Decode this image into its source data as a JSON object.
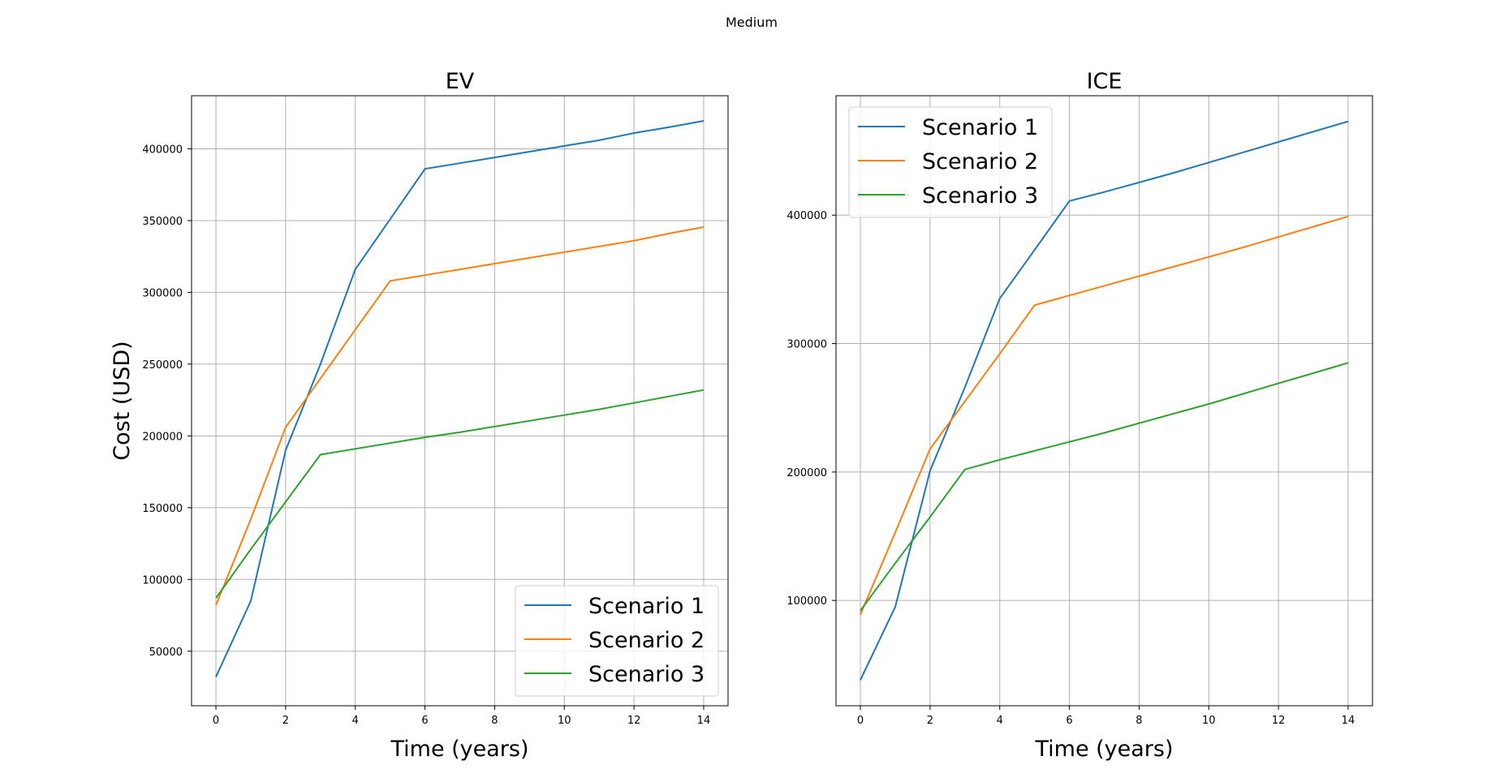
{
  "suptitle": "Medium",
  "colors": {
    "Scenario 1": "#1f77b4",
    "Scenario 2": "#ff7f0e",
    "Scenario 3": "#2ca02c"
  },
  "chart_data": [
    {
      "type": "line",
      "title": "EV",
      "xlabel": "Time (years)",
      "ylabel": "Cost (USD)",
      "xlim": [
        -0.7,
        14.7
      ],
      "ylim": [
        12000,
        437000
      ],
      "xticks": [
        0,
        2,
        4,
        6,
        8,
        10,
        12,
        14
      ],
      "yticks": [
        50000,
        100000,
        150000,
        200000,
        250000,
        300000,
        350000,
        400000
      ],
      "grid": true,
      "legend_position": "lower-right",
      "series": [
        {
          "name": "Scenario 1",
          "x": [
            0,
            1,
            2,
            3,
            4,
            5,
            6,
            7,
            8,
            9,
            10,
            11,
            12,
            13,
            14
          ],
          "values": [
            32000,
            85000,
            190000,
            250000,
            316000,
            351000,
            386000,
            390000,
            394000,
            398000,
            402000,
            406000,
            411000,
            415000,
            419500
          ]
        },
        {
          "name": "Scenario 2",
          "x": [
            0,
            1,
            2,
            3,
            4,
            5,
            6,
            7,
            8,
            9,
            10,
            11,
            12,
            13,
            14
          ],
          "values": [
            82000,
            142000,
            206000,
            240000,
            274000,
            308000,
            312000,
            316000,
            320000,
            324000,
            328000,
            332000,
            336000,
            341000,
            345500
          ]
        },
        {
          "name": "Scenario 3",
          "x": [
            0,
            1,
            2,
            3,
            4,
            5,
            6,
            7,
            8,
            9,
            10,
            11,
            12,
            13,
            14
          ],
          "values": [
            87000,
            121000,
            154000,
            187000,
            191000,
            195000,
            199000,
            202500,
            206500,
            210500,
            214500,
            218500,
            223000,
            227500,
            232000
          ]
        }
      ]
    },
    {
      "type": "line",
      "title": "ICE",
      "xlabel": "Time (years)",
      "ylabel": "",
      "xlim": [
        -0.7,
        14.7
      ],
      "ylim": [
        18000,
        493000
      ],
      "xticks": [
        0,
        2,
        4,
        6,
        8,
        10,
        12,
        14
      ],
      "yticks": [
        100000,
        200000,
        300000,
        400000
      ],
      "grid": true,
      "legend_position": "upper-left",
      "series": [
        {
          "name": "Scenario 1",
          "x": [
            0,
            1,
            2,
            3,
            4,
            5,
            6,
            7,
            8,
            9,
            10,
            11,
            12,
            13,
            14
          ],
          "values": [
            38000,
            95000,
            201000,
            266000,
            335000,
            373000,
            411000,
            418000,
            425500,
            433000,
            441000,
            449000,
            457000,
            465000,
            473000
          ]
        },
        {
          "name": "Scenario 2",
          "x": [
            0,
            1,
            2,
            3,
            4,
            5,
            6,
            7,
            8,
            9,
            10,
            11,
            12,
            13,
            14
          ],
          "values": [
            89000,
            153000,
            218000,
            255000,
            292000,
            330000,
            337500,
            345000,
            352500,
            360000,
            367500,
            375000,
            383000,
            391000,
            399000
          ]
        },
        {
          "name": "Scenario 3",
          "x": [
            0,
            1,
            2,
            3,
            4,
            5,
            6,
            7,
            8,
            9,
            10,
            11,
            12,
            13,
            14
          ],
          "values": [
            92000,
            129000,
            165000,
            202000,
            209500,
            216500,
            223500,
            230500,
            238000,
            245500,
            253000,
            261000,
            269000,
            277000,
            285000
          ]
        }
      ]
    }
  ]
}
